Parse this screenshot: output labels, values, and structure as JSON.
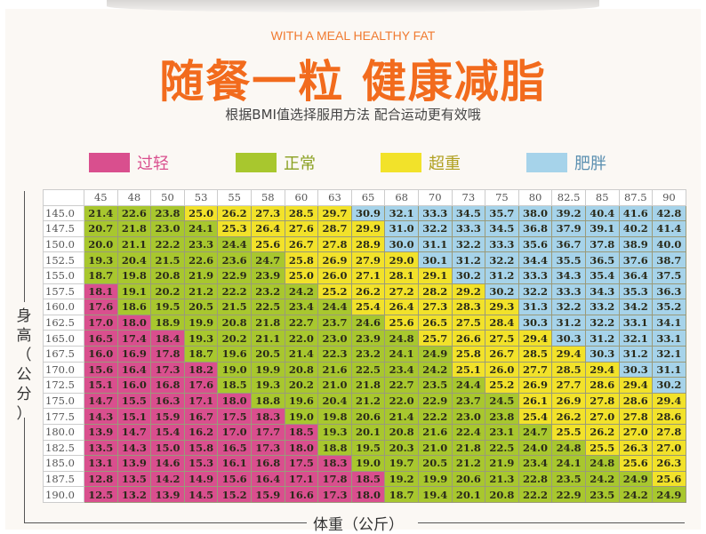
{
  "header": {
    "subtitle_en": "WITH A MEAL HEALTHY FAT",
    "title": "随餐一粒 健康减脂",
    "subtitle": "根据BMI值选择服用方法 配合运动更有效哦"
  },
  "legend": [
    {
      "label": "过轻",
      "color": "#d94f8e",
      "text_color": "#d94f8e"
    },
    {
      "label": "正常",
      "color": "#a8c72e",
      "text_color": "#8aa020"
    },
    {
      "label": "超重",
      "color": "#f2e22a",
      "text_color": "#b0a020"
    },
    {
      "label": "肥胖",
      "color": "#a6d3ea",
      "text_color": "#5a8fb0"
    }
  ],
  "chart_data": {
    "type": "table",
    "xlabel": "体重（公斤）",
    "ylabel": "身高（公分）",
    "columns": [
      "45",
      "48",
      "50",
      "53",
      "55",
      "58",
      "60",
      "63",
      "65",
      "68",
      "70",
      "73",
      "75",
      "80",
      "82.5",
      "85",
      "87.5",
      "90"
    ],
    "rows": [
      {
        "height": "145.0",
        "values": [
          "21.4",
          "22.6",
          "23.8",
          "25.0",
          "26.2",
          "27.3",
          "28.5",
          "29.7",
          "30.9",
          "32.1",
          "33.3",
          "34.5",
          "35.7",
          "38.0",
          "39.2",
          "40.4",
          "41.6",
          "42.8"
        ],
        "categories": "GGGYYYYYBBBBBBBBBB"
      },
      {
        "height": "147.5",
        "values": [
          "20.7",
          "21.8",
          "23.0",
          "24.1",
          "25.3",
          "26.4",
          "27.6",
          "28.7",
          "29.9",
          "31.0",
          "32.2",
          "33.3",
          "34.5",
          "36.8",
          "37.9",
          "39.1",
          "40.2",
          "41.4"
        ],
        "categories": "GGGGYYYYYBBBBBBBBB"
      },
      {
        "height": "150.0",
        "values": [
          "20.0",
          "21.1",
          "22.2",
          "23.3",
          "24.4",
          "25.6",
          "26.7",
          "27.8",
          "28.9",
          "30.0",
          "31.1",
          "32.2",
          "33.3",
          "35.6",
          "36.7",
          "37.8",
          "38.9",
          "40.0"
        ],
        "categories": "GGGGGYYYYBBBBBBBBB"
      },
      {
        "height": "152.5",
        "values": [
          "19.3",
          "20.4",
          "21.5",
          "22.6",
          "23.6",
          "24.7",
          "25.8",
          "26.9",
          "27.9",
          "29.0",
          "30.1",
          "31.2",
          "32.2",
          "34.4",
          "35.5",
          "36.5",
          "37.6",
          "38.7"
        ],
        "categories": "GGGGGGYYYYBBBBBBBB"
      },
      {
        "height": "155.0",
        "values": [
          "18.7",
          "19.8",
          "20.8",
          "21.9",
          "22.9",
          "23.9",
          "25.0",
          "26.0",
          "27.1",
          "28.1",
          "29.1",
          "30.2",
          "31.2",
          "33.3",
          "34.3",
          "35.4",
          "36.4",
          "37.5"
        ],
        "categories": "GGGGGGYYYYYBBBBBBB"
      },
      {
        "height": "157.5",
        "values": [
          "18.1",
          "19.1",
          "20.2",
          "21.2",
          "22.2",
          "23.2",
          "24.2",
          "25.2",
          "26.2",
          "27.2",
          "28.2",
          "29.2",
          "30.2",
          "32.2",
          "33.3",
          "34.3",
          "35.3",
          "36.3"
        ],
        "categories": "PGGGGGGYYYYYBBBBBB"
      },
      {
        "height": "160.0",
        "values": [
          "17.6",
          "18.6",
          "19.5",
          "20.5",
          "21.5",
          "22.5",
          "23.4",
          "24.4",
          "25.4",
          "26.4",
          "27.3",
          "28.3",
          "29.3",
          "31.3",
          "32.2",
          "33.2",
          "34.2",
          "35.2"
        ],
        "categories": "PGGGGGGGYYYYYBBBBB"
      },
      {
        "height": "162.5",
        "values": [
          "17.0",
          "18.0",
          "18.9",
          "19.9",
          "20.8",
          "21.8",
          "22.7",
          "23.7",
          "24.6",
          "25.6",
          "26.5",
          "27.5",
          "28.4",
          "30.3",
          "31.2",
          "32.2",
          "33.1",
          "34.1"
        ],
        "categories": "PPGGGGGGGYYYYBBBBB"
      },
      {
        "height": "165.0",
        "values": [
          "16.5",
          "17.4",
          "18.4",
          "19.3",
          "20.2",
          "21.1",
          "22.0",
          "23.0",
          "23.9",
          "24.8",
          "25.7",
          "26.6",
          "27.5",
          "29.4",
          "30.3",
          "31.2",
          "32.1",
          "33.1"
        ],
        "categories": "PPPGGGGGGGYYYYBBBB"
      },
      {
        "height": "167.5",
        "values": [
          "16.0",
          "16.9",
          "17.8",
          "18.7",
          "19.6",
          "20.5",
          "21.4",
          "22.3",
          "23.2",
          "24.1",
          "24.9",
          "25.8",
          "26.7",
          "28.5",
          "29.4",
          "30.3",
          "31.2",
          "32.1"
        ],
        "categories": "PPPGGGGGGGGYYYYBBB"
      },
      {
        "height": "170.0",
        "values": [
          "15.6",
          "16.4",
          "17.3",
          "18.2",
          "19.0",
          "19.9",
          "20.8",
          "21.6",
          "22.5",
          "23.4",
          "24.2",
          "25.1",
          "26.0",
          "27.7",
          "28.5",
          "29.4",
          "30.3",
          "31.1"
        ],
        "categories": "PPPPGGGGGGGYYYYYBB"
      },
      {
        "height": "172.5",
        "values": [
          "15.1",
          "16.0",
          "16.8",
          "17.6",
          "18.5",
          "19.3",
          "20.2",
          "21.0",
          "21.8",
          "22.7",
          "23.5",
          "24.4",
          "25.2",
          "26.9",
          "27.7",
          "28.6",
          "29.4",
          "30.2"
        ],
        "categories": "PPPPGGGGGGGGYYYYYB"
      },
      {
        "height": "175.0",
        "values": [
          "14.7",
          "15.5",
          "16.3",
          "17.1",
          "18.0",
          "18.8",
          "19.6",
          "20.4",
          "21.2",
          "22.0",
          "22.9",
          "23.7",
          "24.5",
          "26.1",
          "26.9",
          "27.8",
          "28.6",
          "29.4"
        ],
        "categories": "PPPPPGGGGGGGGYYYYY"
      },
      {
        "height": "177.5",
        "values": [
          "14.3",
          "15.1",
          "15.9",
          "16.7",
          "17.5",
          "18.3",
          "19.0",
          "19.8",
          "20.6",
          "21.4",
          "22.2",
          "23.0",
          "23.8",
          "25.4",
          "26.2",
          "27.0",
          "27.8",
          "28.6"
        ],
        "categories": "PPPPPPGGGGGGGYYYYY"
      },
      {
        "height": "180.0",
        "values": [
          "13.9",
          "14.7",
          "15.4",
          "16.2",
          "17.0",
          "17.7",
          "18.5",
          "19.3",
          "20.1",
          "20.8",
          "21.6",
          "22.4",
          "23.1",
          "24.7",
          "25.5",
          "26.2",
          "27.0",
          "27.8"
        ],
        "categories": "PPPPPPPGGGGGGGYYYY"
      },
      {
        "height": "182.5",
        "values": [
          "13.5",
          "14.3",
          "15.0",
          "15.8",
          "16.5",
          "17.3",
          "18.0",
          "18.8",
          "19.5",
          "20.3",
          "21.0",
          "21.8",
          "22.5",
          "24.0",
          "24.8",
          "25.5",
          "26.3",
          "27.0"
        ],
        "categories": "PPPPPPPGGGGGGGGYYY"
      },
      {
        "height": "185.0",
        "values": [
          "13.1",
          "13.9",
          "14.6",
          "15.3",
          "16.1",
          "16.8",
          "17.5",
          "18.3",
          "19.0",
          "19.7",
          "20.5",
          "21.2",
          "21.9",
          "23.4",
          "24.1",
          "24.8",
          "25.6",
          "26.3"
        ],
        "categories": "PPPPPPPPGGGGGGGGYY"
      },
      {
        "height": "187.5",
        "values": [
          "12.8",
          "13.5",
          "14.2",
          "14.9",
          "15.6",
          "16.4",
          "17.1",
          "17.8",
          "18.5",
          "19.2",
          "19.9",
          "20.6",
          "21.3",
          "22.8",
          "23.5",
          "24.2",
          "24.9",
          "25.6"
        ],
        "categories": "PPPPPPPPPGGGGGGGGY"
      },
      {
        "height": "190.0",
        "values": [
          "12.5",
          "13.2",
          "13.9",
          "14.5",
          "15.2",
          "15.9",
          "16.6",
          "17.3",
          "18.0",
          "18.7",
          "19.4",
          "20.1",
          "20.8",
          "22.2",
          "22.9",
          "23.5",
          "24.2",
          "24.9"
        ],
        "categories": "PPPPPPPPPGGGGGGGGG"
      }
    ],
    "category_colors": {
      "P": "#d94f8e",
      "G": "#a8c72e",
      "Y": "#f2e22a",
      "B": "#a6d3ea"
    }
  }
}
